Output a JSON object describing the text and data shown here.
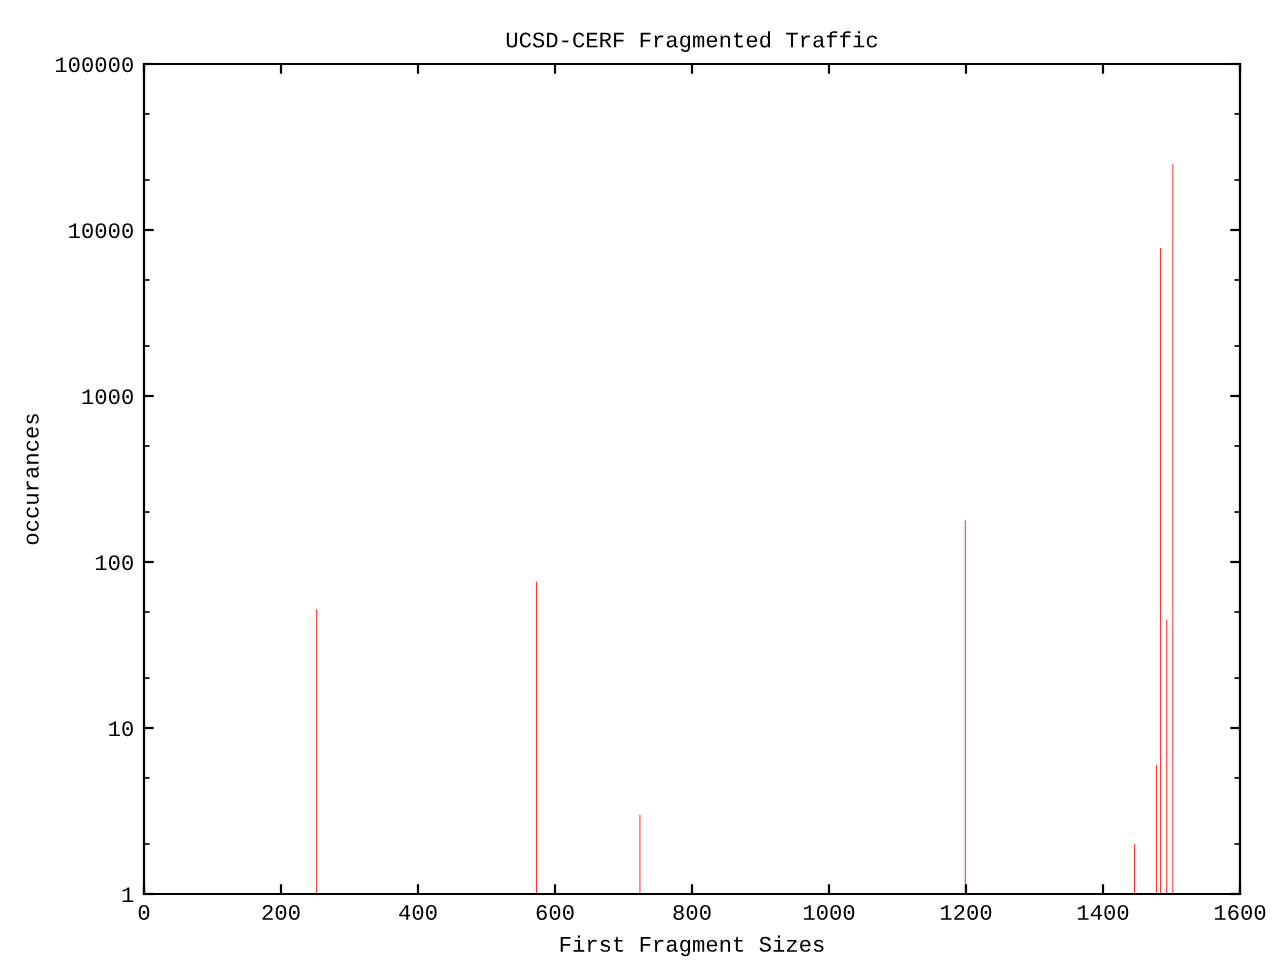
{
  "chart_data": {
    "type": "bar",
    "title": "UCSD-CERF Fragmented Traffic",
    "xlabel": "First Fragment Sizes",
    "ylabel": "occurances",
    "x": [
      252,
      573,
      724,
      1199,
      1446,
      1478,
      1484,
      1493,
      1502
    ],
    "values": [
      52,
      76,
      3,
      178,
      2,
      6,
      7800,
      45,
      25000
    ],
    "color": "#ff3333",
    "log": "y",
    "xlim": [
      0,
      1600
    ],
    "xticks": [
      0,
      200,
      400,
      600,
      800,
      1000,
      1200,
      1400,
      1600
    ],
    "ylim": [
      1,
      100000
    ],
    "yticks": [
      1,
      10,
      100,
      1000,
      10000,
      100000
    ],
    "grid": false
  }
}
